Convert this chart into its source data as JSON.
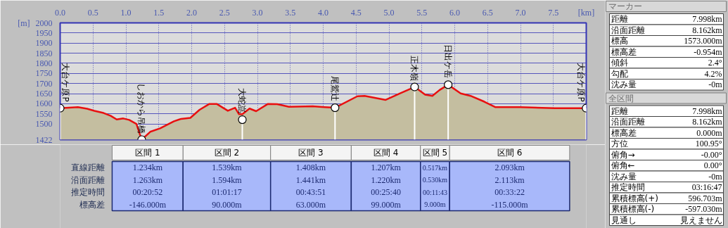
{
  "chart_data": [
    {
      "type": "area",
      "xlim": [
        0,
        8
      ],
      "ylim": [
        1422,
        2000
      ],
      "xticks": [
        {
          "value": 0,
          "label": "0.0"
        },
        0.5,
        {
          "value": 1,
          "label": "1.0"
        },
        1.5,
        {
          "value": 2,
          "label": "2.0"
        },
        2.5,
        {
          "value": 3,
          "label": "3.0"
        },
        3.5,
        {
          "value": 4,
          "label": "4.0"
        },
        4.5,
        {
          "value": 5,
          "label": "5.0"
        },
        5.5,
        {
          "value": 6,
          "label": "6.0"
        },
        6.5,
        {
          "value": 7,
          "label": "7.0"
        },
        7.5
      ],
      "yticks": [
        1422,
        1500,
        1550,
        1600,
        1650,
        1700,
        1750,
        1800,
        1850,
        1900,
        1950,
        2000
      ],
      "xlabel": "[km]",
      "ylabel": "[m]",
      "grid": true,
      "line_style": "solid",
      "series": [
        {
          "type": "area",
          "color": "#e81010",
          "x": [
            0,
            0.27,
            0.41,
            0.52,
            0.66,
            0.77,
            0.86,
            0.96,
            1.05,
            1.16,
            1.24,
            1.37,
            1.52,
            1.73,
            1.84,
            1.98,
            2.12,
            2.27,
            2.38,
            2.55,
            2.66,
            2.72,
            2.77,
            2.88,
            2.98,
            3.16,
            3.3,
            3.48,
            3.84,
            4.02,
            4.18,
            4.52,
            4.63,
            4.95,
            5.17,
            5.39,
            5.55,
            5.66,
            5.77,
            5.9,
            6.09,
            6.24,
            6.45,
            6.62,
            6.99,
            7.52,
            7.998
          ],
          "values": [
            1578,
            1583,
            1575,
            1565,
            1554,
            1540,
            1522,
            1527,
            1520,
            1500,
            1422,
            1461,
            1478,
            1513,
            1525,
            1530,
            1570,
            1599,
            1599,
            1565,
            1580,
            1548,
            1548,
            1576,
            1563,
            1599,
            1598,
            1585,
            1587,
            1583,
            1580,
            1637,
            1639,
            1619,
            1651,
            1683,
            1645,
            1639,
            1668,
            1694,
            1651,
            1639,
            1610,
            1583,
            1583,
            1578,
            1578
          ]
        },
        {
          "type": "lollipop",
          "color": "#ffffff",
          "marker": "circle",
          "x": [
            0,
            1.24,
            2.77,
            4.18,
            5.39,
            5.9,
            7.998
          ],
          "values": [
            1578,
            1422,
            1521,
            1580,
            1683,
            1694,
            1578
          ]
        }
      ],
      "annotations": [
        {
          "text": "大台ケ原P",
          "x": 0,
          "y": 1578
        },
        {
          "text": "しおから吊橋",
          "x": 1.24,
          "y": 1422
        },
        {
          "text": "大蛇嵓",
          "x": 2.77,
          "y": 1521
        },
        {
          "text": "尾鷲辻",
          "x": 4.18,
          "y": 1580
        },
        {
          "text": "正木嶺",
          "x": 5.39,
          "y": 1683
        },
        {
          "text": "日出ケ岳",
          "x": 5.9,
          "y": 1694
        },
        {
          "text": "大台ケ原P",
          "x": 7.998,
          "y": 1578
        }
      ]
    },
    {
      "type": "other",
      "categories": [
        "区間 1",
        "区間 2",
        "区間 3",
        "区間 4",
        "区間 5",
        "区間 6"
      ],
      "y_categories": [
        "直線距離",
        "沿面距離",
        "推定時間",
        "標高差"
      ],
      "cell_labels": [
        [
          "1.234km",
          "1.539km",
          "1.408km",
          "1.207km",
          "0.517km",
          "2.093km"
        ],
        [
          "1.263km",
          "1.594km",
          "1.441km",
          "1.220km",
          "0.530km",
          "2.113km"
        ],
        [
          "00:20:52",
          "01:01:17",
          "00:43:51",
          "00:25:40",
          "00:11:43",
          "00:33:22"
        ],
        [
          "-146.000m",
          "90.000m",
          "63.000m",
          "99.000m",
          "9.000m",
          "-115.000m"
        ]
      ]
    },
    {
      "type": "other",
      "title": "マーカー",
      "y_categories": [
        "距離",
        "沿面距離",
        "標高",
        "標高差",
        "傾斜",
        "勾配",
        "沈み量"
      ],
      "cell_labels": [
        [
          "7.998km"
        ],
        [
          "8.162km"
        ],
        [
          "1573.000m"
        ],
        [
          "-0.954m"
        ],
        [
          "2.4°"
        ],
        [
          "4.2%"
        ],
        [
          "-0m"
        ]
      ]
    },
    {
      "type": "other",
      "title": "全区間",
      "y_categories": [
        "距離",
        "沿面距離",
        "標高差",
        "方位",
        "俯角→",
        "俯角←",
        "沈み量",
        "推定時間",
        "累積標高(+)",
        "累積標高(-)",
        "見通し"
      ],
      "cell_labels": [
        [
          "7.998km"
        ],
        [
          "8.162km"
        ],
        [
          "0.000m"
        ],
        [
          "100.95°"
        ],
        [
          "-0.00°"
        ],
        [
          "0.00°"
        ],
        [
          "-0m"
        ],
        [
          "03:16:47"
        ],
        [
          "596.703m"
        ],
        [
          "-597.030m"
        ],
        [
          "見えません"
        ]
      ]
    }
  ]
}
